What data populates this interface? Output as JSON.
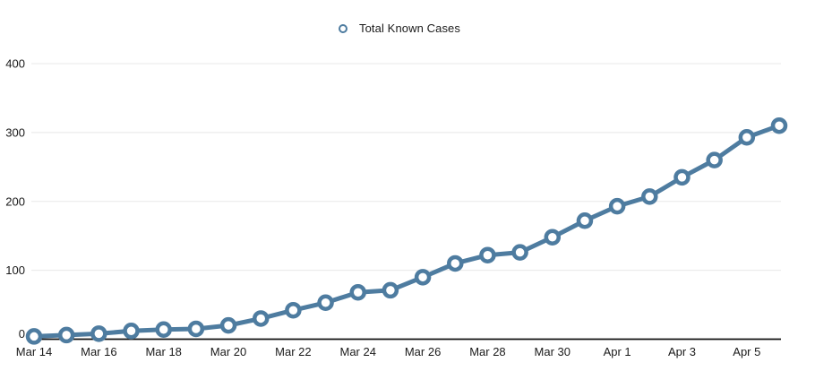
{
  "legend": {
    "label": "Total Known Cases",
    "marker_icon": "open-circle-icon"
  },
  "chart_data": {
    "type": "line",
    "title": "",
    "xlabel": "",
    "ylabel": "",
    "x": [
      "Mar 14",
      "Mar 15",
      "Mar 16",
      "Mar 17",
      "Mar 18",
      "Mar 19",
      "Mar 20",
      "Mar 21",
      "Mar 22",
      "Mar 23",
      "Mar 24",
      "Mar 25",
      "Mar 26",
      "Mar 27",
      "Mar 28",
      "Mar 29",
      "Mar 30",
      "Mar 31",
      "Apr 1",
      "Apr 2",
      "Apr 3",
      "Apr 4",
      "Apr 5",
      "Apr 6"
    ],
    "series": [
      {
        "name": "Total Known Cases",
        "values": [
          4,
          6,
          8,
          12,
          14,
          15,
          20,
          30,
          42,
          53,
          68,
          71,
          90,
          110,
          122,
          126,
          148,
          172,
          193,
          207,
          235,
          260,
          293,
          310
        ]
      }
    ],
    "x_tick_every": 2,
    "x_tick_labels": [
      "Mar 14",
      "Mar 16",
      "Mar 18",
      "Mar 20",
      "Mar 22",
      "Mar 24",
      "Mar 26",
      "Mar 28",
      "Mar 30",
      "Apr 1",
      "Apr 3",
      "Apr 5"
    ],
    "y_ticks": [
      0,
      100,
      200,
      300,
      400
    ],
    "ylim": [
      0,
      400
    ],
    "grid": true,
    "legend_position": "top-center",
    "marker_style": "open-circle",
    "colors": {
      "line": "#4e7ca0",
      "marker_fill": "#ffffff",
      "grid": "#e8e8e8",
      "axis": "#111111",
      "text": "#1a1a1a",
      "background": "#ffffff"
    }
  }
}
